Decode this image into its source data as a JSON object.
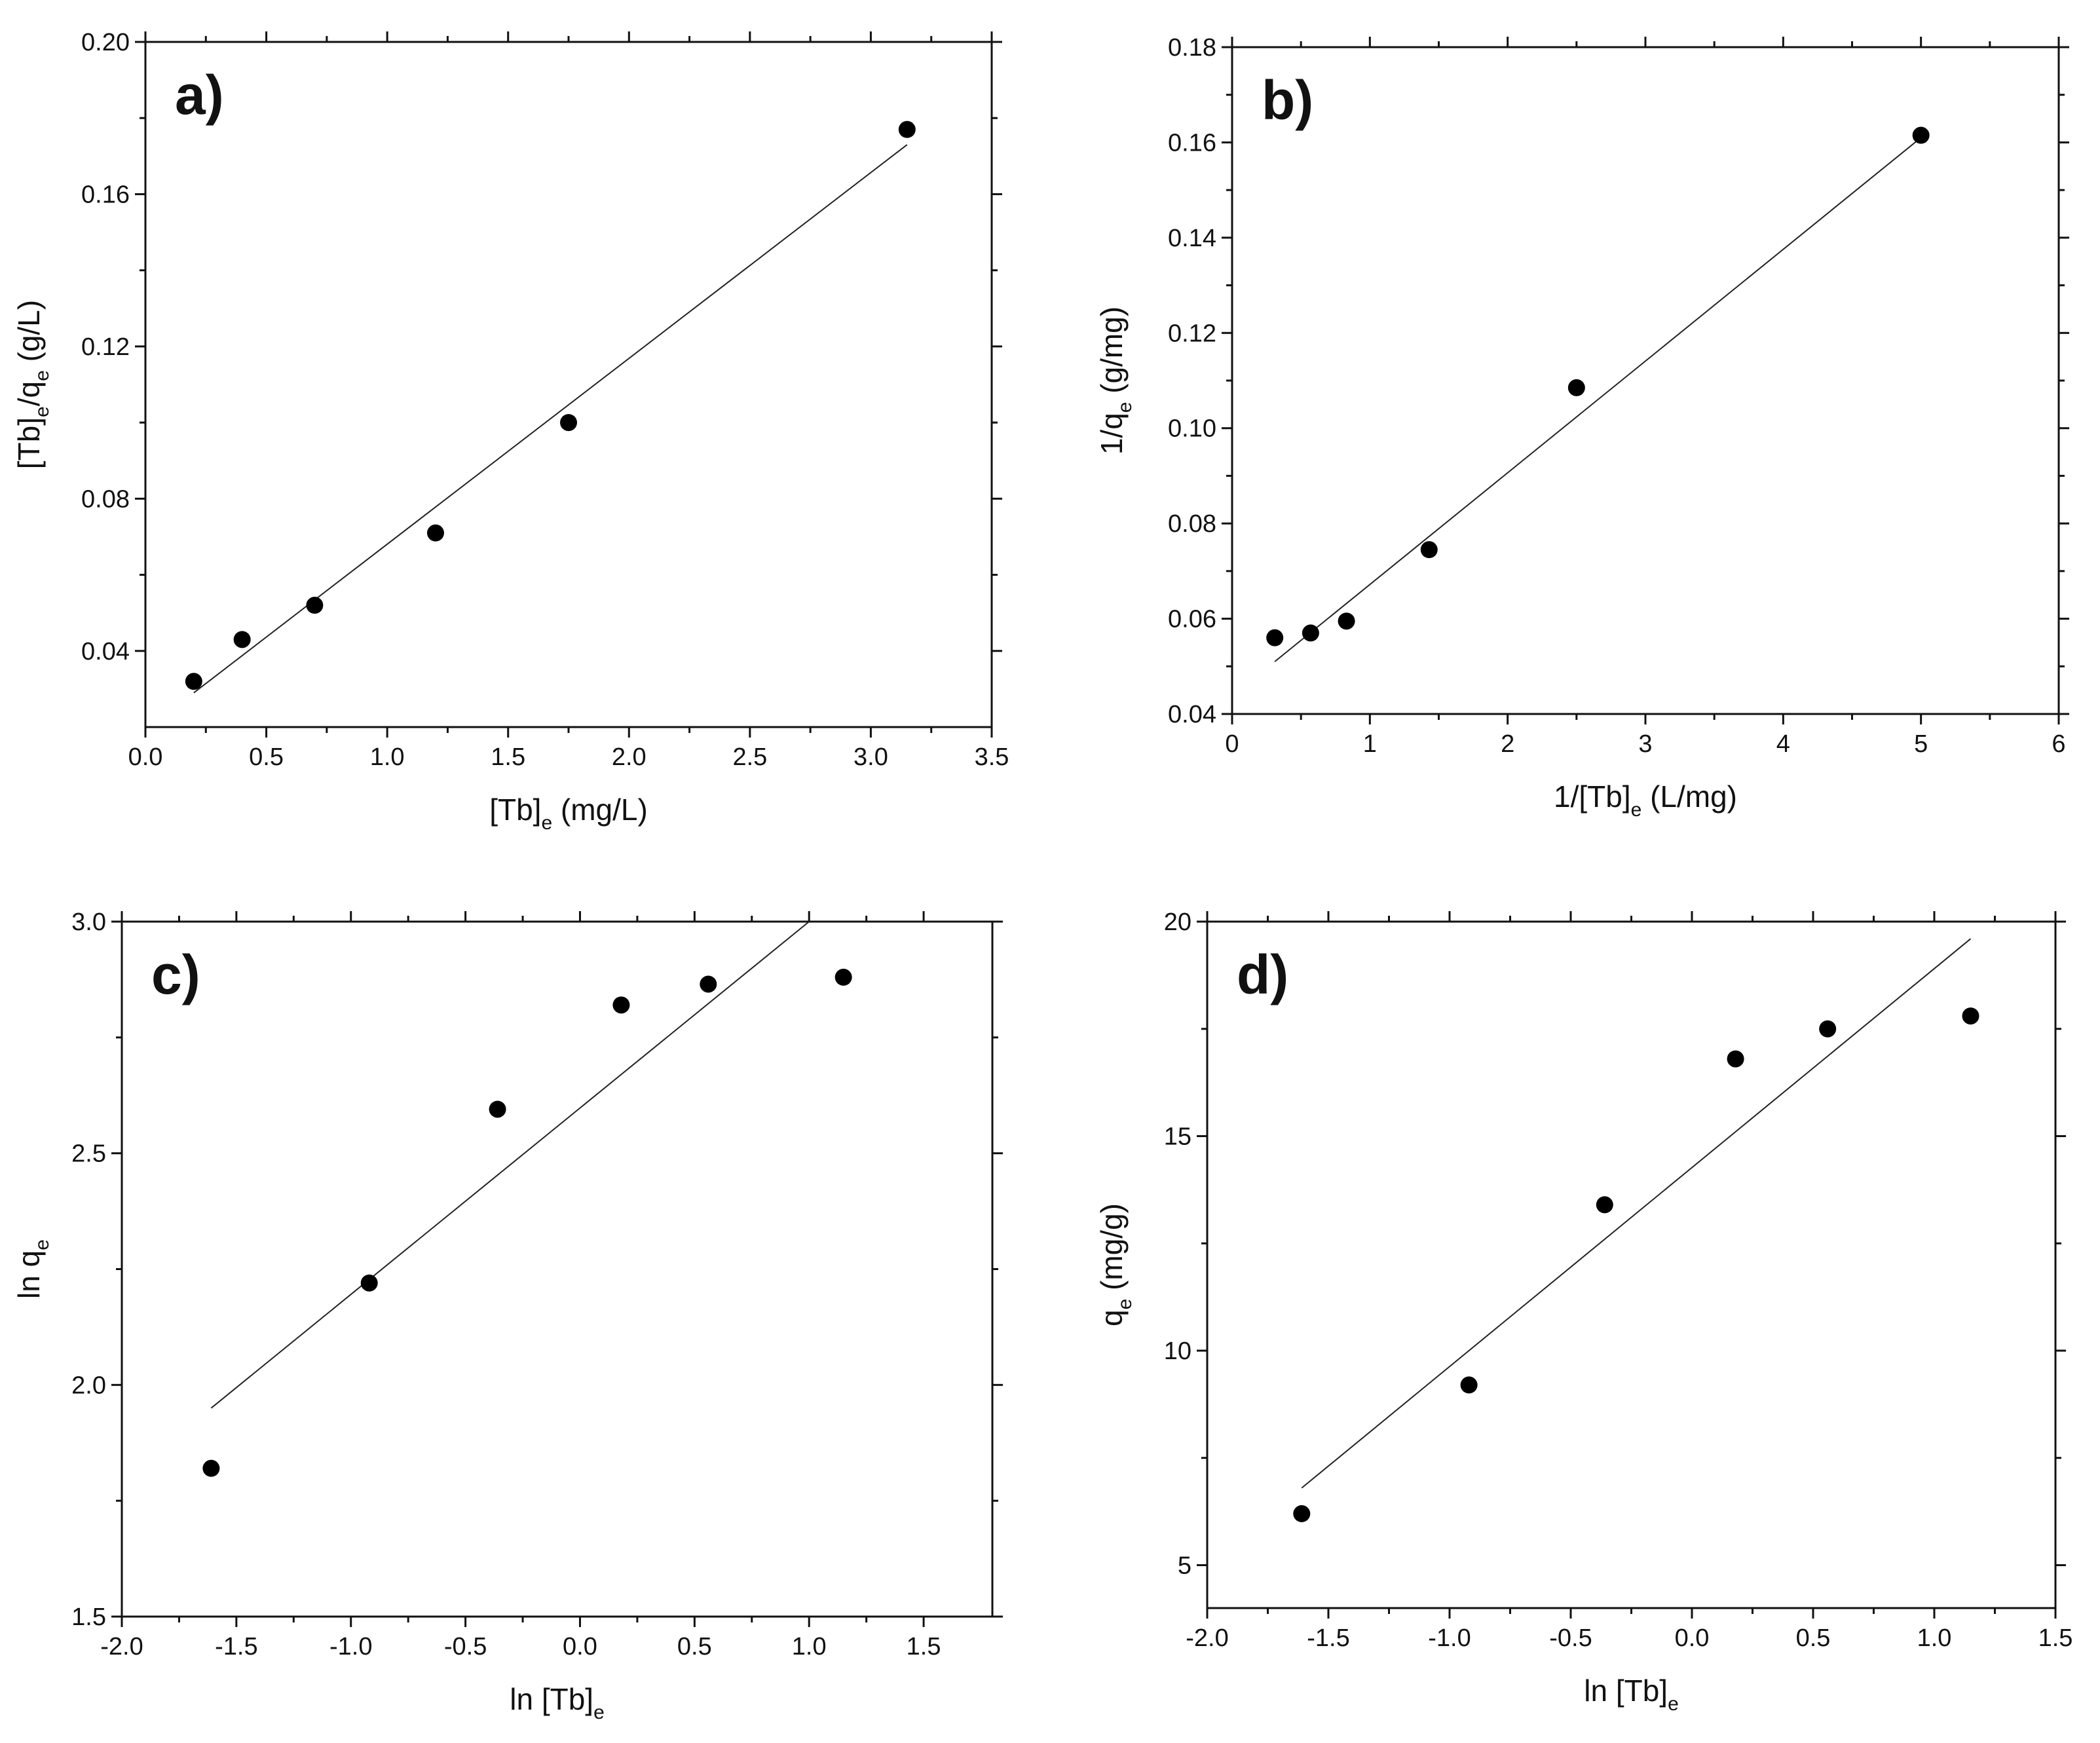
{
  "chart_data": [
    {
      "type": "scatter",
      "panel_label": "a)",
      "xlabel": {
        "main": "[Tb]",
        "sub": "e",
        "rest": " (mg/L)"
      },
      "ylabel": {
        "main": "[Tb]",
        "sub": "e",
        "rest": "/q",
        "sub2": "e",
        "rest2": " (g/L)"
      },
      "xlim": [
        0.0,
        3.5
      ],
      "ylim": [
        0.02,
        0.2
      ],
      "xticks": [
        0.0,
        0.5,
        1.0,
        1.5,
        2.0,
        2.5,
        3.0,
        3.5
      ],
      "xtick_labels": [
        "0.0",
        "0.5",
        "1.0",
        "1.5",
        "2.0",
        "2.5",
        "3.0",
        "3.5"
      ],
      "yticks": [
        0.04,
        0.08,
        0.12,
        0.16,
        0.2
      ],
      "ytick_labels": [
        "0.04",
        "0.08",
        "0.12",
        "0.16",
        "0.20"
      ],
      "x": [
        0.2,
        0.4,
        0.7,
        1.2,
        1.75,
        3.15
      ],
      "y": [
        0.032,
        0.043,
        0.052,
        0.071,
        0.1,
        0.177
      ],
      "fit": {
        "x": [
          0.2,
          3.15
        ],
        "y": [
          0.029,
          0.173
        ]
      }
    },
    {
      "type": "scatter",
      "panel_label": "b)",
      "xlabel": {
        "main": "1/[Tb]",
        "sub": "e",
        "rest": " (L/mg)"
      },
      "ylabel": {
        "main": "1/q",
        "sub": "e",
        "rest": " (g/mg)"
      },
      "xlim": [
        0,
        6
      ],
      "ylim": [
        0.04,
        0.18
      ],
      "xticks": [
        0,
        1,
        2,
        3,
        4,
        5,
        6
      ],
      "xtick_labels": [
        "0",
        "1",
        "2",
        "3",
        "4",
        "5",
        "6"
      ],
      "yticks": [
        0.04,
        0.06,
        0.08,
        0.1,
        0.12,
        0.14,
        0.16,
        0.18
      ],
      "ytick_labels": [
        "0.04",
        "0.06",
        "0.08",
        "0.10",
        "0.12",
        "0.14",
        "0.16",
        "0.18"
      ],
      "x": [
        0.31,
        0.57,
        0.83,
        1.43,
        2.5,
        5.0
      ],
      "y": [
        0.056,
        0.057,
        0.0595,
        0.0745,
        0.1085,
        0.1615
      ],
      "fit": {
        "x": [
          0.31,
          5.0
        ],
        "y": [
          0.051,
          0.161
        ]
      }
    },
    {
      "type": "scatter",
      "panel_label": "c)",
      "xlabel": {
        "main": "ln [Tb]",
        "sub": "e",
        "rest": ""
      },
      "ylabel": {
        "main": "ln q",
        "sub": "e",
        "rest": ""
      },
      "xlim": [
        -2.0,
        1.8
      ],
      "ylim": [
        1.5,
        3.0
      ],
      "xticks": [
        -2.0,
        -1.5,
        -1.0,
        -0.5,
        0.0,
        0.5,
        1.0,
        1.5
      ],
      "xtick_labels": [
        "-2.0",
        "-1.5",
        "-1.0",
        "-0.5",
        "0.0",
        "0.5",
        "1.0",
        "1.5"
      ],
      "yticks": [
        1.5,
        2.0,
        2.5,
        3.0
      ],
      "ytick_labels": [
        "1.5",
        "2.0",
        "2.5",
        "3.0"
      ],
      "x": [
        -1.61,
        -0.92,
        -0.36,
        0.18,
        0.56,
        1.15
      ],
      "y": [
        1.82,
        2.22,
        2.595,
        2.82,
        2.865,
        2.88
      ],
      "fit": {
        "x": [
          -1.61,
          1.0
        ],
        "y": [
          1.95,
          3.0
        ]
      }
    },
    {
      "type": "scatter",
      "panel_label": "d)",
      "xlabel": {
        "main": "ln [Tb]",
        "sub": "e",
        "rest": ""
      },
      "ylabel": {
        "main": "q",
        "sub": "e",
        "rest": " (mg/g)"
      },
      "xlim": [
        -2.0,
        1.5
      ],
      "ylim": [
        4,
        20
      ],
      "xticks": [
        -2.0,
        -1.5,
        -1.0,
        -0.5,
        0.0,
        0.5,
        1.0,
        1.5
      ],
      "xtick_labels": [
        "-2.0",
        "-1.5",
        "-1.0",
        "-0.5",
        "0.0",
        "0.5",
        "1.0",
        "1.5"
      ],
      "yticks": [
        5,
        10,
        15,
        20
      ],
      "ytick_labels": [
        "5",
        "10",
        "15",
        "20"
      ],
      "x": [
        -1.61,
        -0.92,
        -0.36,
        0.18,
        0.56,
        1.15
      ],
      "y": [
        6.2,
        9.2,
        13.4,
        16.8,
        17.5,
        17.8
      ],
      "fit": {
        "x": [
          -1.61,
          1.15
        ],
        "y": [
          6.8,
          19.6
        ]
      }
    }
  ]
}
